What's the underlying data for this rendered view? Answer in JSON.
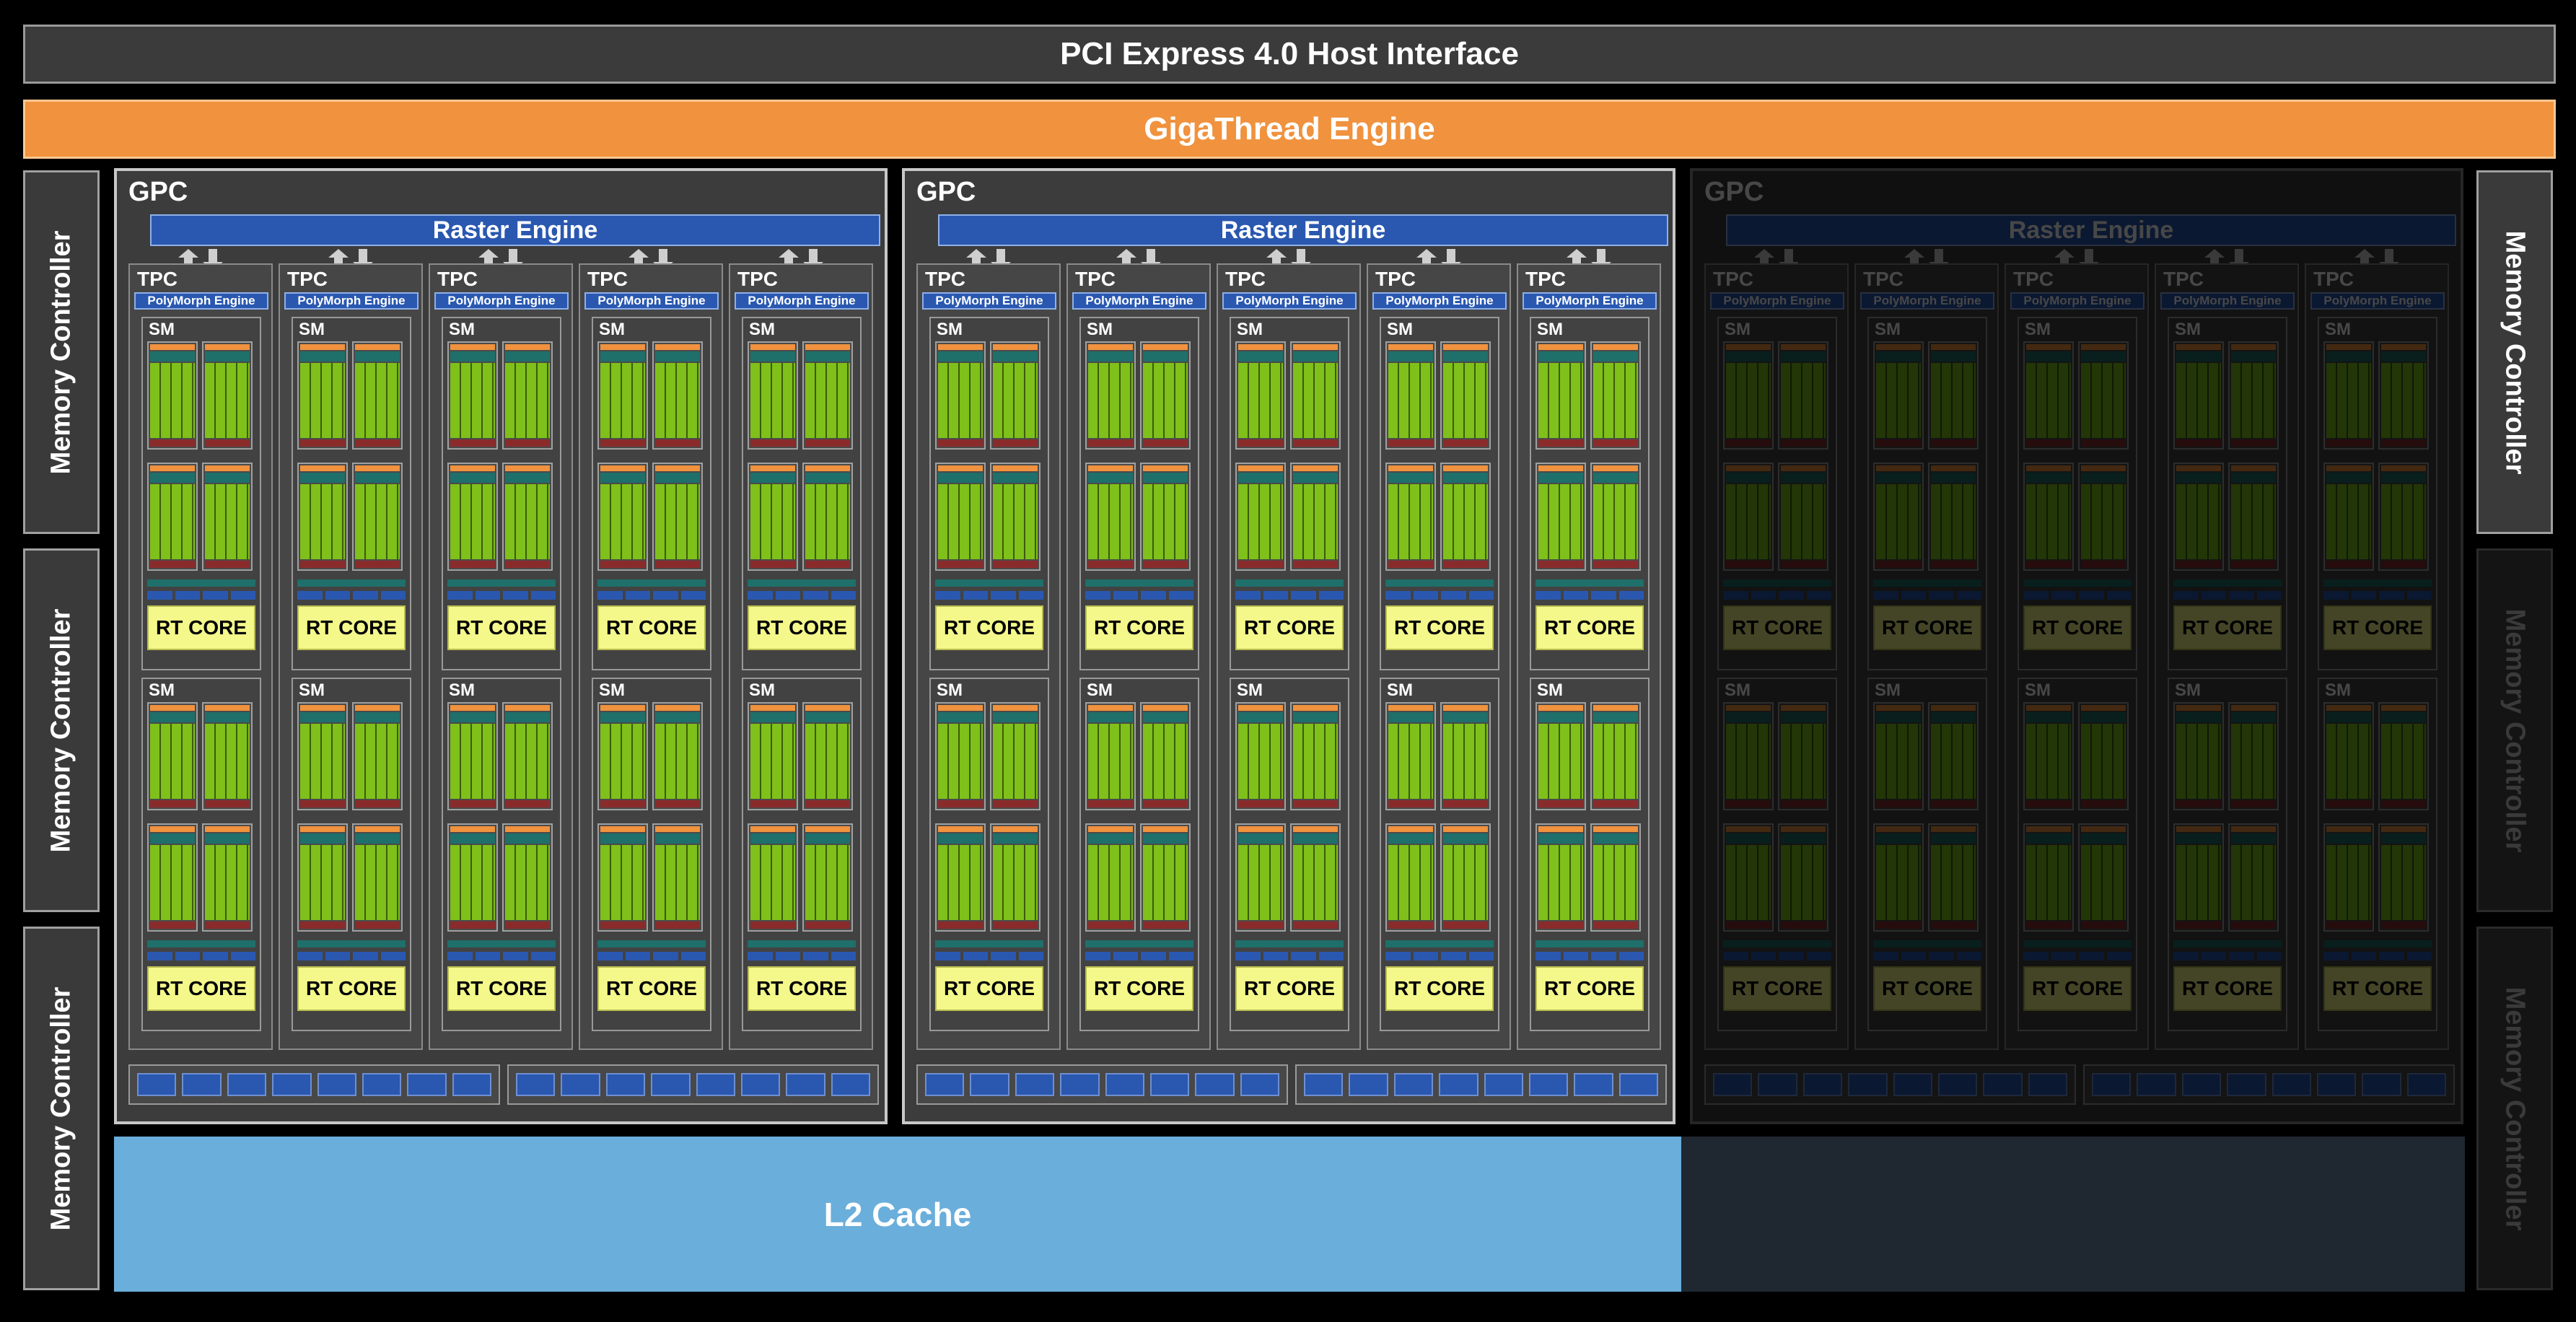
{
  "pcie": {
    "label": "PCI Express 4.0 Host Interface"
  },
  "gigathread": {
    "label": "GigaThread Engine"
  },
  "l2": {
    "label": "L2 Cache"
  },
  "memory_controller": {
    "label": "Memory Controller"
  },
  "gpc": {
    "label": "GPC",
    "raster_label": "Raster Engine",
    "tpc_label": "TPC",
    "polymorph_label": "PolyMorph Engine",
    "sm_label": "SM",
    "rt_core_label": "RT CORE"
  },
  "colors": {
    "gigathread": "#f0923e",
    "raster": "#2a58b0",
    "cuda_core": "#7fc01a",
    "rt_core": "#f4f88a",
    "l2": "#6aaedb"
  },
  "state": {
    "enabled_gpcs": 2,
    "total_gpcs": 3,
    "enabled_memory_controllers": 4,
    "total_memory_controllers": 6
  }
}
